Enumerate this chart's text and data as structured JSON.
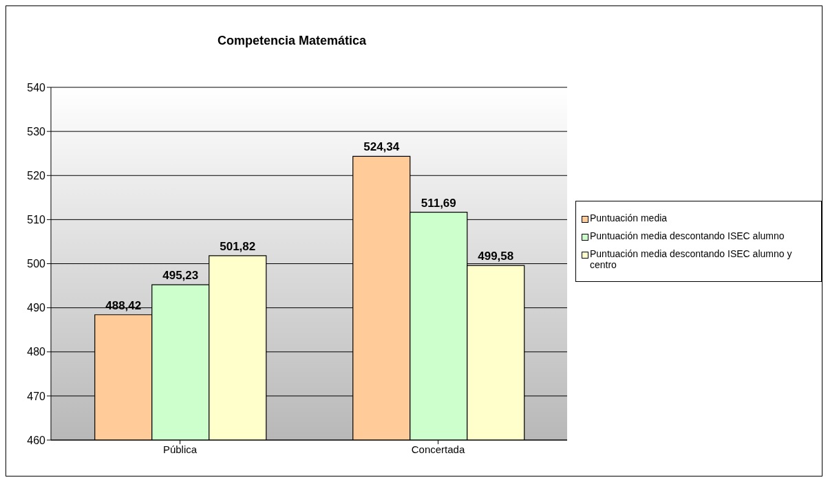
{
  "chart_data": {
    "type": "bar",
    "title": "Competencia Matemática",
    "categories": [
      "Pública",
      "Concertada"
    ],
    "series": [
      {
        "name": "Puntuación media",
        "color": "#ffcc99",
        "values": [
          488.42,
          524.34
        ],
        "value_labels": [
          "488,42",
          "524,34"
        ]
      },
      {
        "name": "Puntuación media descontando ISEC alumno",
        "color": "#ccffcc",
        "values": [
          495.23,
          511.69
        ],
        "value_labels": [
          "495,23",
          "511,69"
        ]
      },
      {
        "name": "Puntuación media descontando ISEC alumno y centro",
        "color": "#ffffcc",
        "values": [
          501.82,
          499.58
        ],
        "value_labels": [
          "501,82",
          "499,58"
        ]
      }
    ],
    "ylim": [
      460,
      540
    ],
    "yticks": [
      460,
      470,
      480,
      490,
      500,
      510,
      520,
      530,
      540
    ],
    "grid": "y",
    "legend": "right"
  }
}
